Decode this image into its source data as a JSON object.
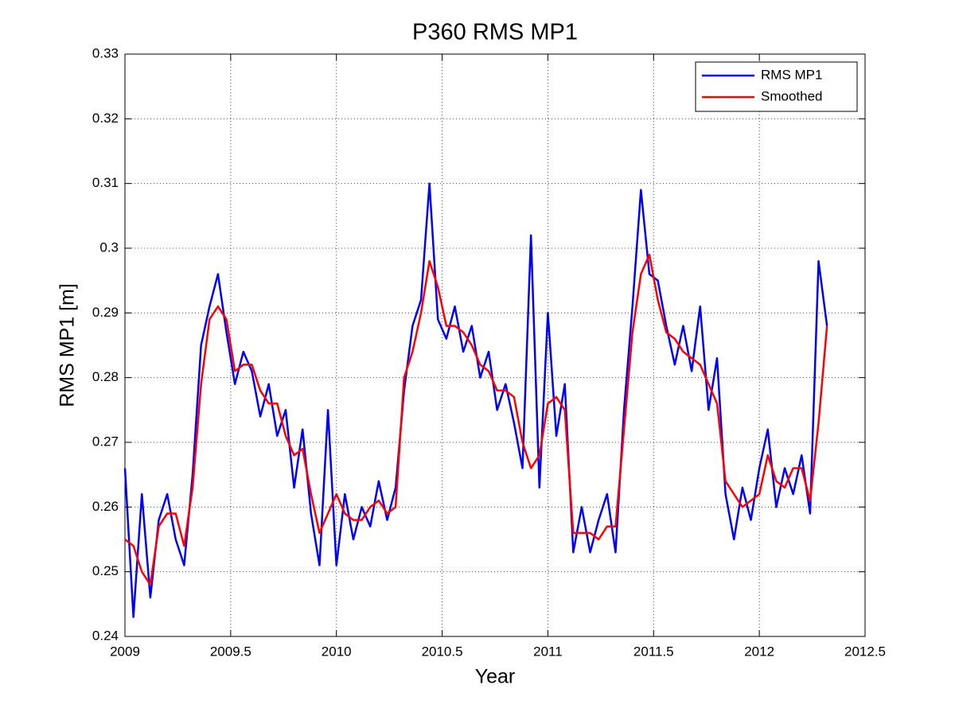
{
  "chart_data": {
    "type": "line",
    "title": "P360 RMS MP1",
    "x_label": "Year",
    "y_label": "RMS MP1 [m]",
    "x": [
      2009.0,
      2009.04,
      2009.08,
      2009.12,
      2009.16,
      2009.2,
      2009.24,
      2009.28,
      2009.32,
      2009.36,
      2009.4,
      2009.44,
      2009.48,
      2009.52,
      2009.56,
      2009.6,
      2009.64,
      2009.68,
      2009.72,
      2009.76,
      2009.8,
      2009.84,
      2009.88,
      2009.92,
      2009.96,
      2010.0,
      2010.04,
      2010.08,
      2010.12,
      2010.16,
      2010.2,
      2010.24,
      2010.28,
      2010.32,
      2010.36,
      2010.4,
      2010.44,
      2010.48,
      2010.52,
      2010.56,
      2010.6,
      2010.64,
      2010.68,
      2010.72,
      2010.76,
      2010.8,
      2010.84,
      2010.88,
      2010.92,
      2010.96,
      2011.0,
      2011.04,
      2011.08,
      2011.12,
      2011.16,
      2011.2,
      2011.24,
      2011.28,
      2011.32,
      2011.36,
      2011.4,
      2011.44,
      2011.48,
      2011.52,
      2011.56,
      2011.6,
      2011.64,
      2011.68,
      2011.72,
      2011.76,
      2011.8,
      2011.84,
      2011.88,
      2011.92,
      2011.96,
      2012.0,
      2012.04,
      2012.08,
      2012.12,
      2012.16,
      2012.2,
      2012.24,
      2012.28,
      2012.32
    ],
    "series": [
      {
        "name": "RMS MP1",
        "color": "#0000ff",
        "values": [
          0.266,
          0.243,
          0.262,
          0.246,
          0.258,
          0.262,
          0.255,
          0.251,
          0.265,
          0.285,
          0.291,
          0.296,
          0.287,
          0.279,
          0.284,
          0.281,
          0.274,
          0.279,
          0.271,
          0.275,
          0.263,
          0.272,
          0.259,
          0.251,
          0.275,
          0.251,
          0.262,
          0.255,
          0.26,
          0.257,
          0.264,
          0.258,
          0.263,
          0.278,
          0.288,
          0.292,
          0.31,
          0.289,
          0.286,
          0.291,
          0.284,
          0.288,
          0.28,
          0.284,
          0.275,
          0.279,
          0.273,
          0.266,
          0.302,
          0.263,
          0.29,
          0.271,
          0.279,
          0.253,
          0.26,
          0.253,
          0.258,
          0.262,
          0.253,
          0.275,
          0.291,
          0.309,
          0.296,
          0.295,
          0.288,
          0.282,
          0.288,
          0.281,
          0.291,
          0.275,
          0.283,
          0.262,
          0.255,
          0.263,
          0.258,
          0.266,
          0.272,
          0.26,
          0.266,
          0.262,
          0.268,
          0.259,
          0.298,
          0.288
        ]
      },
      {
        "name": "Smoothed",
        "color": "#ff0000",
        "values": [
          0.255,
          0.254,
          0.25,
          0.248,
          0.257,
          0.259,
          0.259,
          0.254,
          0.263,
          0.279,
          0.289,
          0.291,
          0.289,
          0.281,
          0.282,
          0.282,
          0.278,
          0.276,
          0.276,
          0.271,
          0.268,
          0.269,
          0.262,
          0.256,
          0.259,
          0.262,
          0.259,
          0.258,
          0.258,
          0.26,
          0.261,
          0.259,
          0.26,
          0.28,
          0.284,
          0.29,
          0.298,
          0.294,
          0.288,
          0.288,
          0.287,
          0.285,
          0.282,
          0.281,
          0.278,
          0.278,
          0.277,
          0.27,
          0.266,
          0.268,
          0.276,
          0.277,
          0.275,
          0.256,
          0.256,
          0.256,
          0.255,
          0.257,
          0.257,
          0.272,
          0.287,
          0.296,
          0.299,
          0.292,
          0.287,
          0.286,
          0.284,
          0.283,
          0.282,
          0.279,
          0.276,
          0.264,
          0.262,
          0.26,
          0.261,
          0.262,
          0.268,
          0.264,
          0.263,
          0.266,
          0.266,
          0.261,
          0.273,
          0.288
        ]
      }
    ],
    "xlim": [
      2009,
      2012.5
    ],
    "xticks": [
      2009,
      2009.5,
      2010,
      2010.5,
      2011,
      2011.5,
      2012,
      2012.5
    ],
    "ylim": [
      0.24,
      0.33
    ],
    "yticks": [
      0.24,
      0.25,
      0.26,
      0.27,
      0.28,
      0.29,
      0.3,
      0.31,
      0.32,
      0.33
    ],
    "grid": true,
    "legend": "top-right"
  }
}
